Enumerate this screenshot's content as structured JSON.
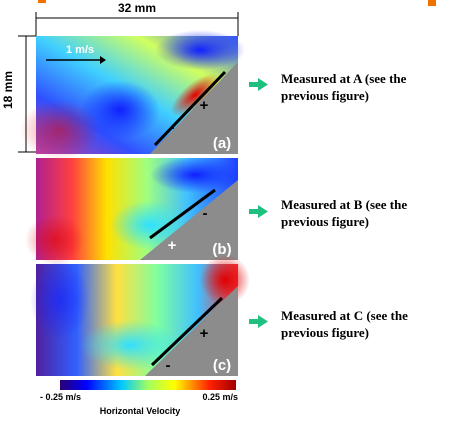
{
  "figure": {
    "width_label": "32 mm",
    "height_label": "18 mm",
    "arrow_label": "1 m/s",
    "panels": [
      {
        "label": "(a)",
        "signs": [
          "+",
          "-"
        ],
        "caption": "Measured at A (see the previous figure)"
      },
      {
        "label": "(b)",
        "signs": [
          "-",
          "+"
        ],
        "caption": "Measured at B (see the previous figure)"
      },
      {
        "label": "(c)",
        "signs": [
          "+",
          "-"
        ],
        "caption": "Measured at C (see the previous figure)"
      }
    ],
    "colorbar": {
      "min_label": "- 0.25 m/s",
      "max_label": "0.25 m/s",
      "title": "Horizontal Velocity"
    }
  }
}
